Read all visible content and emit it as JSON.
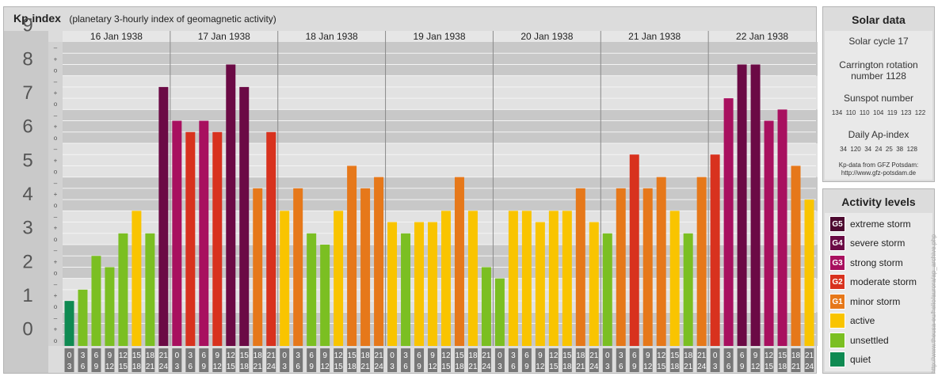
{
  "header": {
    "title": "Kp-index",
    "subtitle": "(planetary 3-hourly index of geomagnetic activity)"
  },
  "chart_data": {
    "type": "bar",
    "title": "Kp-index",
    "subtitle": "(planetary 3-hourly index of geomagnetic activity)",
    "ylim": [
      0,
      9
    ],
    "y_ticks": [
      "0",
      "1",
      "2",
      "3",
      "4",
      "5",
      "6",
      "7",
      "8",
      "9"
    ],
    "y_minor_ticks": [
      "o",
      "+",
      "–"
    ],
    "days": [
      "16 Jan 1938",
      "17 Jan 1938",
      "18 Jan 1938",
      "19 Jan 1938",
      "20 Jan 1938",
      "21 Jan 1938",
      "22 Jan 1938"
    ],
    "intervals": [
      [
        "0",
        "3"
      ],
      [
        "3",
        "6"
      ],
      [
        "6",
        "9"
      ],
      [
        "9",
        "12"
      ],
      [
        "12",
        "15"
      ],
      [
        "15",
        "18"
      ],
      [
        "18",
        "21"
      ],
      [
        "21",
        "24"
      ]
    ],
    "values": [
      1.333,
      1.667,
      2.667,
      2.333,
      3.333,
      4.0,
      3.333,
      7.667,
      6.667,
      6.333,
      6.667,
      6.333,
      8.333,
      7.667,
      4.667,
      6.333,
      4.0,
      4.667,
      3.333,
      3.0,
      4.0,
      5.333,
      4.667,
      5.0,
      3.667,
      3.333,
      3.667,
      3.667,
      4.0,
      5.0,
      4.0,
      2.333,
      2.0,
      4.0,
      4.0,
      3.667,
      4.0,
      4.0,
      4.667,
      3.667,
      3.333,
      4.667,
      5.667,
      4.667,
      5.0,
      4.0,
      3.333,
      5.0,
      5.667,
      7.333,
      8.333,
      8.333,
      6.667,
      7.0,
      5.333,
      4.333
    ],
    "grid": true
  },
  "levels": [
    {
      "code": "G5",
      "label": "extreme storm",
      "color": "#4d0a30"
    },
    {
      "code": "G4",
      "label": "severe storm",
      "color": "#6b0a45"
    },
    {
      "code": "G3",
      "label": "strong storm",
      "color": "#a8105f"
    },
    {
      "code": "G2",
      "label": "moderate storm",
      "color": "#d8321e"
    },
    {
      "code": "G1",
      "label": "minor storm",
      "color": "#e6781a"
    },
    {
      "code": "",
      "label": "active",
      "color": "#f9c400"
    },
    {
      "code": "",
      "label": "unsettled",
      "color": "#7bbf22"
    },
    {
      "code": "",
      "label": "quiet",
      "color": "#0f8a52"
    }
  ],
  "solar": {
    "title": "Solar data",
    "cycle": "Solar cycle 17",
    "carrington_1": "Carrington rotation",
    "carrington_2": "number 1128",
    "sunspot_label": "Sunspot number",
    "sunspot_values": "134  110  110  104  119  123  122",
    "ap_label": "Daily Ap-index",
    "ap_values": "34  120  34  24  25  38  128",
    "source_1": "Kp-data from GFZ Potsdam:",
    "source_2": "http://www.gfz-potsdam.de"
  },
  "activity": {
    "title": "Activity levels"
  },
  "credit": "http://www.theusa-eu/helio/aurora/ap_archive.php"
}
